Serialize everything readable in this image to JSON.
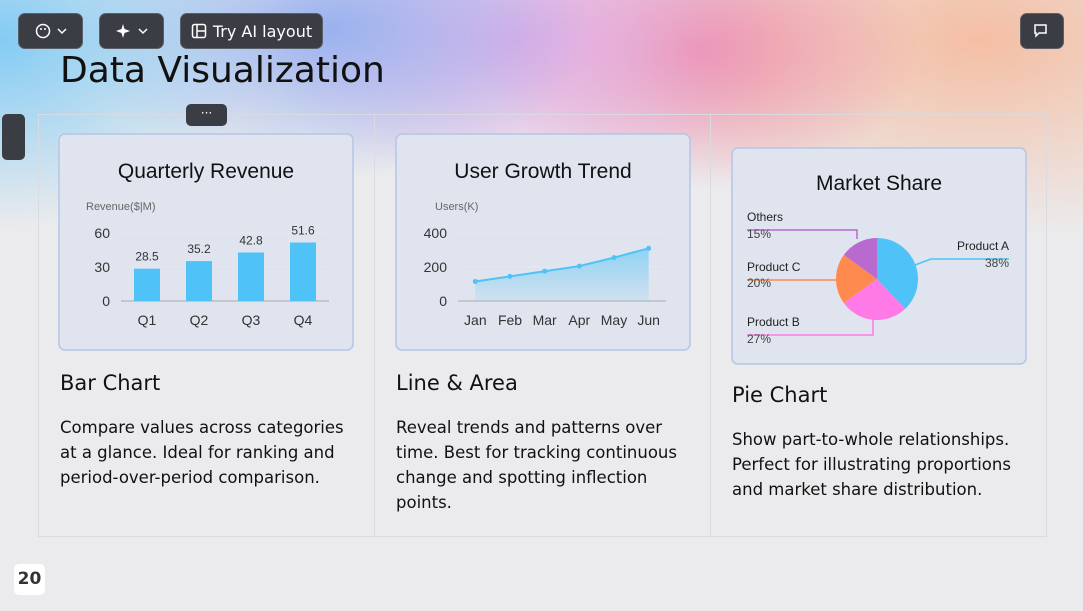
{
  "toolbar": {
    "ai_layout": "Try AI layout"
  },
  "slide": {
    "title": "Data Visualization",
    "page_number": "20"
  },
  "cards": [
    {
      "heading": "Bar Chart",
      "description": "Compare values across categories at a glance. Ideal for ranking and period-over-period comparison."
    },
    {
      "heading": "Line & Area",
      "description": "Reveal trends and patterns over time. Best for tracking continuous change and spotting inflection points."
    },
    {
      "heading": "Pie Chart",
      "description": "Show part-to-whole relationships. Perfect for illustrating proportions and market share distribution."
    }
  ],
  "chart_data": [
    {
      "type": "bar",
      "title": "Quarterly Revenue",
      "y_label": "Revenue($|M)",
      "categories": [
        "Q1",
        "Q2",
        "Q3",
        "Q4"
      ],
      "values": [
        28.5,
        35.2,
        42.8,
        51.6
      ],
      "color": "#4fc3f7",
      "ylim": [
        0,
        60
      ],
      "yticks": [
        0,
        30,
        60
      ]
    },
    {
      "type": "line",
      "title": "User Growth Trend",
      "y_label": "Users(K)",
      "categories": [
        "Jan",
        "Feb",
        "Mar",
        "Apr",
        "May",
        "Jun"
      ],
      "values": [
        115,
        145,
        175,
        205,
        255,
        310
      ],
      "color": "#4fc3f7",
      "area": true,
      "ylim": [
        0,
        400
      ],
      "yticks": [
        0,
        200,
        400
      ]
    },
    {
      "type": "pie",
      "title": "Market Share",
      "categories": [
        "Product A",
        "Product B",
        "Product C",
        "Others"
      ],
      "values": [
        38,
        27,
        20,
        15
      ],
      "value_labels": [
        "38%",
        "27%",
        "20%",
        "15%"
      ],
      "colors": [
        "#4fc3f7",
        "#ff7ae6",
        "#ff8a50",
        "#b86ad0"
      ]
    }
  ]
}
